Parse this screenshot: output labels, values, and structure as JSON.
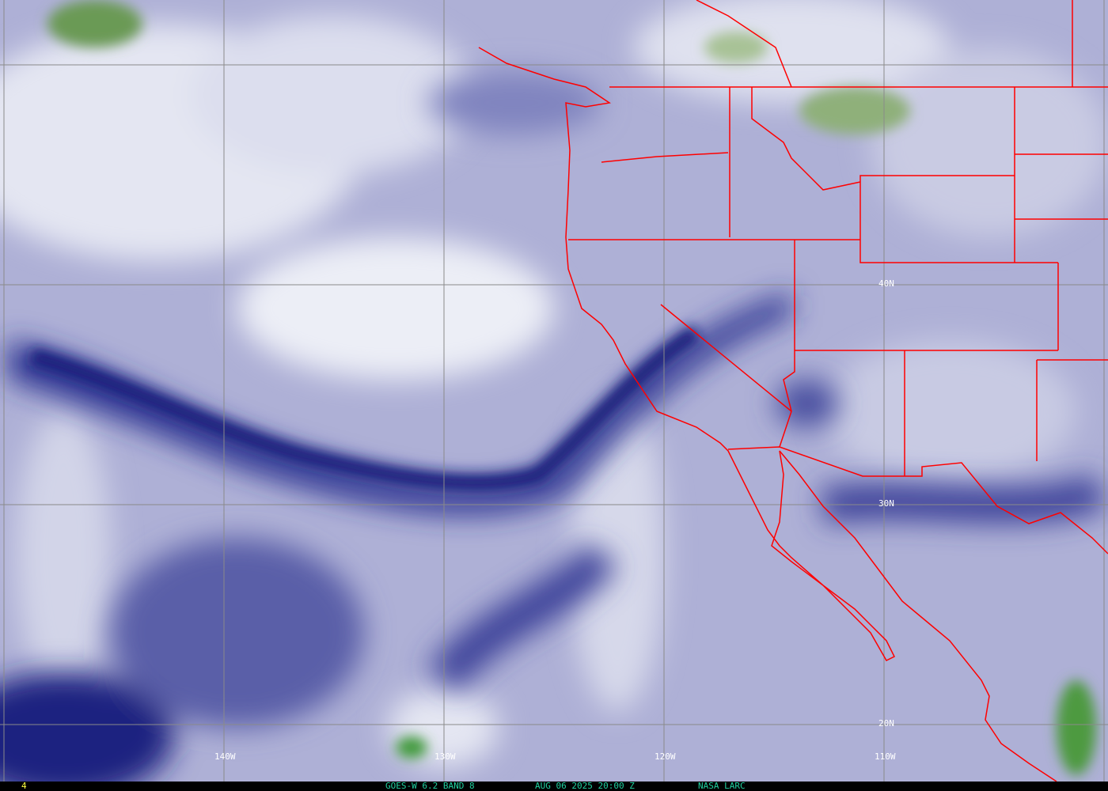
{
  "map": {
    "title": "GOES-W 6.2 BAND 8",
    "datetime": "AUG 06 2025 20:00 Z",
    "source": "NASA LARC",
    "frame_number": "4",
    "longitude_labels": [
      "140W",
      "130W",
      "120W",
      "110W"
    ],
    "latitude_labels": [
      "40N",
      "30N",
      "20N"
    ],
    "colors": {
      "dry": "#1e2380",
      "moist": "#eef0f8",
      "cold_cloud": "#5e9a4a",
      "borders": "#ff0000",
      "grid": "#8a8a8a",
      "caption_text": "#20d0a0"
    }
  }
}
